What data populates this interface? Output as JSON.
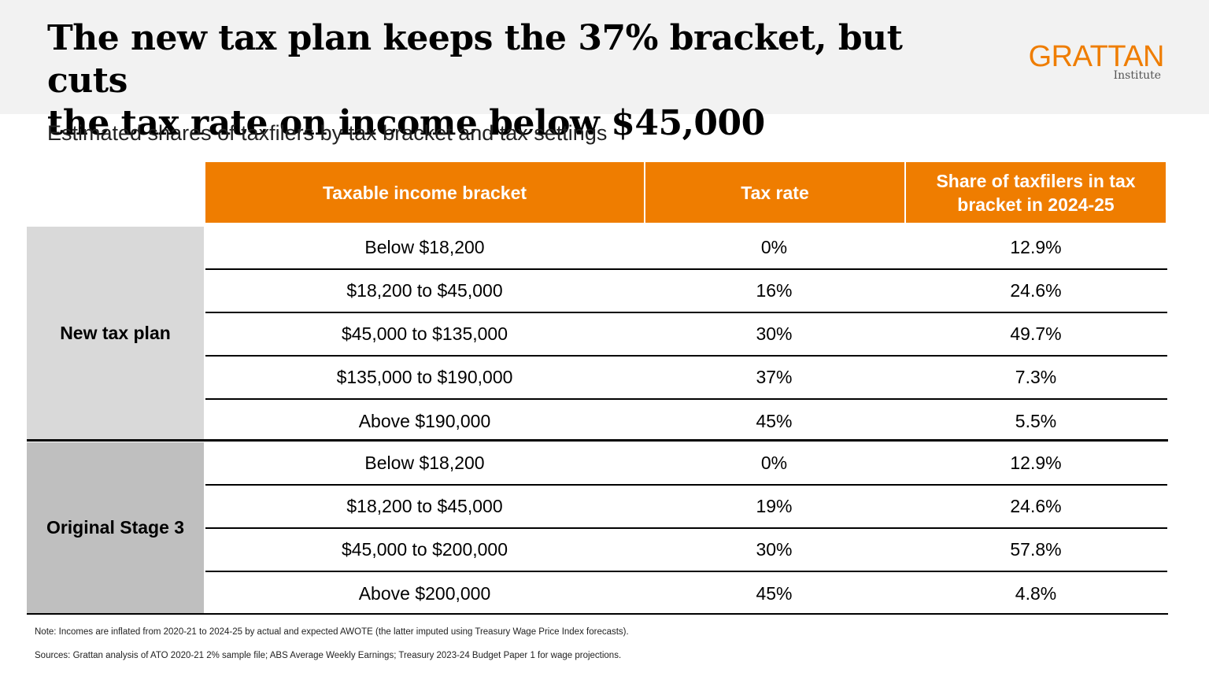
{
  "header": {
    "title_line1": "The new tax plan keeps the 37% bracket, but cuts",
    "title_line2": "the tax rate on income below $45,000",
    "logo_main": "GRATTAN",
    "logo_sub": "Institute",
    "accent_color": "#ef7d00"
  },
  "subtitle": "Estimated shares of taxfilers by tax bracket and tax settings",
  "table": {
    "columns": [
      "Taxable income bracket",
      "Tax rate",
      "Share of taxfilers in tax bracket in 2024-25"
    ],
    "groups": [
      {
        "label": "New tax plan",
        "rows": [
          [
            "Below $18,200",
            "0%",
            "12.9%"
          ],
          [
            "$18,200 to $45,000",
            "16%",
            "24.6%"
          ],
          [
            "$45,000 to $135,000",
            "30%",
            "49.7%"
          ],
          [
            "$135,000 to $190,000",
            "37%",
            "7.3%"
          ],
          [
            "Above $190,000",
            "45%",
            "5.5%"
          ]
        ]
      },
      {
        "label": "Original Stage 3",
        "rows": [
          [
            "Below $18,200",
            "0%",
            "12.9%"
          ],
          [
            "$18,200 to $45,000",
            "19%",
            "24.6%"
          ],
          [
            "$45,000 to $200,000",
            "30%",
            "57.8%"
          ],
          [
            "Above $200,000",
            "45%",
            "4.8%"
          ]
        ]
      }
    ]
  },
  "notes": {
    "note": "Note: Incomes are inflated from 2020-21 to 2024-25 by actual and expected AWOTE (the latter imputed using Treasury Wage Price Index forecasts).",
    "sources": "Sources: Grattan analysis of ATO 2020-21 2% sample file; ABS Average Weekly Earnings; Treasury 2023-24 Budget Paper 1 for wage projections."
  }
}
